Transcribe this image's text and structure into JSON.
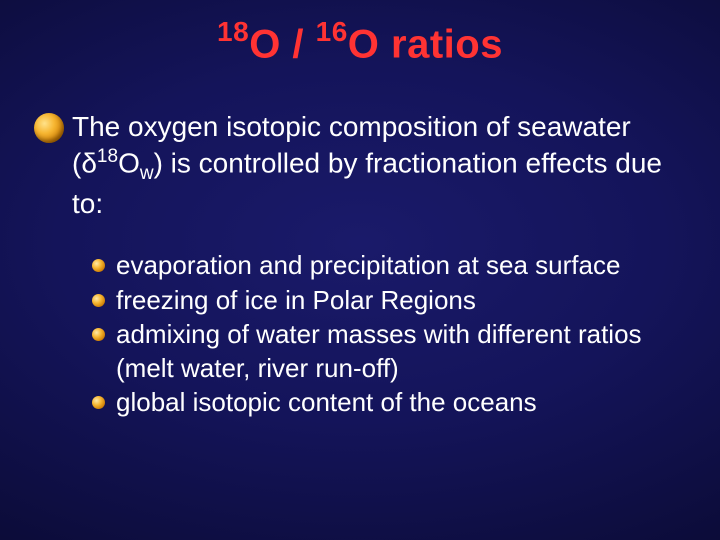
{
  "title": {
    "color": "#ff3333",
    "fontsize": 40,
    "sup_fontsize": 28,
    "parts": {
      "sup1": "18",
      "o1": "O / ",
      "sup2": "16",
      "o2": "O ratios"
    }
  },
  "main": {
    "fontsize": 28,
    "color": "#ffffff",
    "pre": "The oxygen isotopic composition of seawater (",
    "delta": "δ",
    "sup": "18",
    "o": "O",
    "sub": "w",
    "post": ") is controlled by fractionation effects due to:"
  },
  "sub": {
    "fontsize": 26,
    "color": "#ffffff",
    "items": [
      "evaporation and precipitation at sea surface",
      "freezing of ice in Polar Regions",
      "admixing of water masses with different ratios (melt water, river run-off)",
      "global isotopic content of the oceans"
    ]
  },
  "bullet": {
    "main_gradient": [
      "#ffe28a",
      "#f7b733",
      "#cc7a00",
      "#7a4400"
    ],
    "sub_gradient": [
      "#ffe9a8",
      "#f7b733",
      "#c87600",
      "#6a3a00"
    ]
  },
  "background": {
    "gradient": [
      "#1a1a6a",
      "#14145a",
      "#0c0c3a",
      "#020212"
    ]
  }
}
